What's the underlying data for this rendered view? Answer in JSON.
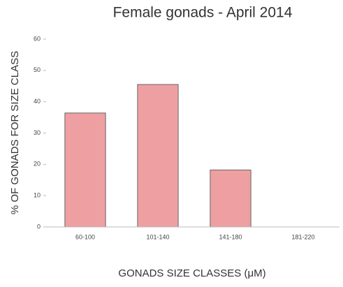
{
  "chart_data": {
    "type": "bar",
    "title": "Female gonads - April 2014",
    "x_label": "GONADS SIZE CLASSES (μM)",
    "y_label": "% OF GONADS FOR SIZE CLASS",
    "categories": [
      "60-100",
      "101-140",
      "141-180",
      "181-220"
    ],
    "values": [
      36.4,
      45.5,
      18.2,
      0
    ],
    "color": "#ee9fa2",
    "ylim": [
      0,
      60
    ],
    "yticks": [
      0,
      10,
      20,
      30,
      40,
      50,
      60
    ],
    "grid": false
  }
}
